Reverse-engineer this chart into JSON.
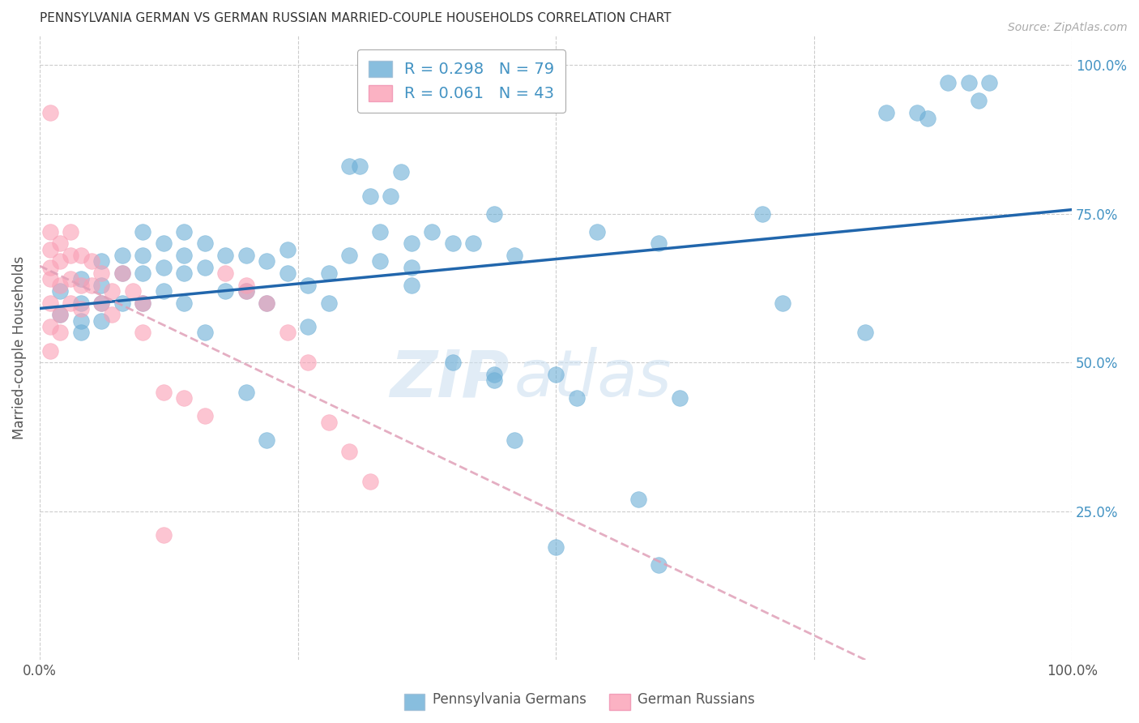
{
  "title": "PENNSYLVANIA GERMAN VS GERMAN RUSSIAN MARRIED-COUPLE HOUSEHOLDS CORRELATION CHART",
  "source": "Source: ZipAtlas.com",
  "ylabel": "Married-couple Households",
  "watermark_zip": "ZIP",
  "watermark_atlas": "atlas",
  "blue_R": "R = 0.298",
  "blue_N": "N = 79",
  "pink_R": "R = 0.061",
  "pink_N": "N = 43",
  "legend_label_blue": "Pennsylvania Germans",
  "legend_label_pink": "German Russians",
  "blue_color": "#6baed6",
  "pink_color": "#fa9fb5",
  "trend_blue_color": "#2166ac",
  "trend_pink_color": "#e0a0b8",
  "right_axis_color": "#4393c3",
  "grid_color": "#cccccc",
  "background_color": "#ffffff",
  "blue_points_x": [
    0.3,
    0.33,
    0.33,
    0.36,
    0.36,
    0.36,
    0.02,
    0.02,
    0.04,
    0.04,
    0.04,
    0.04,
    0.06,
    0.06,
    0.06,
    0.06,
    0.08,
    0.08,
    0.08,
    0.1,
    0.1,
    0.1,
    0.1,
    0.12,
    0.12,
    0.12,
    0.14,
    0.14,
    0.14,
    0.14,
    0.16,
    0.16,
    0.16,
    0.18,
    0.18,
    0.2,
    0.2,
    0.22,
    0.22,
    0.24,
    0.24,
    0.26,
    0.26,
    0.28,
    0.28,
    0.38,
    0.4,
    0.42,
    0.44,
    0.46,
    0.5,
    0.52,
    0.54,
    0.58,
    0.6,
    0.62,
    0.7,
    0.72,
    0.8,
    0.82,
    0.85,
    0.86,
    0.88,
    0.9,
    0.91,
    0.92,
    0.3,
    0.31,
    0.32,
    0.34,
    0.35,
    0.44,
    0.2,
    0.22,
    0.4,
    0.44,
    0.46,
    0.5,
    0.6
  ],
  "blue_points_y": [
    0.68,
    0.72,
    0.67,
    0.7,
    0.66,
    0.63,
    0.62,
    0.58,
    0.64,
    0.6,
    0.57,
    0.55,
    0.67,
    0.63,
    0.6,
    0.57,
    0.68,
    0.65,
    0.6,
    0.72,
    0.68,
    0.65,
    0.6,
    0.7,
    0.66,
    0.62,
    0.72,
    0.68,
    0.65,
    0.6,
    0.7,
    0.66,
    0.55,
    0.68,
    0.62,
    0.68,
    0.62,
    0.67,
    0.6,
    0.69,
    0.65,
    0.63,
    0.56,
    0.65,
    0.6,
    0.72,
    0.7,
    0.7,
    0.48,
    0.68,
    0.48,
    0.44,
    0.72,
    0.27,
    0.7,
    0.44,
    0.75,
    0.6,
    0.55,
    0.92,
    0.92,
    0.91,
    0.97,
    0.97,
    0.94,
    0.97,
    0.83,
    0.83,
    0.78,
    0.78,
    0.82,
    0.75,
    0.45,
    0.37,
    0.5,
    0.47,
    0.37,
    0.19,
    0.16
  ],
  "pink_points_x": [
    0.01,
    0.01,
    0.01,
    0.01,
    0.01,
    0.01,
    0.01,
    0.01,
    0.02,
    0.02,
    0.02,
    0.02,
    0.02,
    0.03,
    0.03,
    0.03,
    0.03,
    0.04,
    0.04,
    0.04,
    0.05,
    0.05,
    0.06,
    0.06,
    0.07,
    0.07,
    0.08,
    0.09,
    0.1,
    0.1,
    0.12,
    0.14,
    0.16,
    0.18,
    0.2,
    0.22,
    0.24,
    0.26,
    0.28,
    0.3,
    0.32,
    0.12,
    0.2
  ],
  "pink_points_y": [
    0.92,
    0.72,
    0.69,
    0.66,
    0.64,
    0.6,
    0.56,
    0.52,
    0.7,
    0.67,
    0.63,
    0.58,
    0.55,
    0.72,
    0.68,
    0.64,
    0.6,
    0.68,
    0.63,
    0.59,
    0.67,
    0.63,
    0.65,
    0.6,
    0.62,
    0.58,
    0.65,
    0.62,
    0.6,
    0.55,
    0.45,
    0.44,
    0.41,
    0.65,
    0.62,
    0.6,
    0.55,
    0.5,
    0.4,
    0.35,
    0.3,
    0.21,
    0.63
  ]
}
